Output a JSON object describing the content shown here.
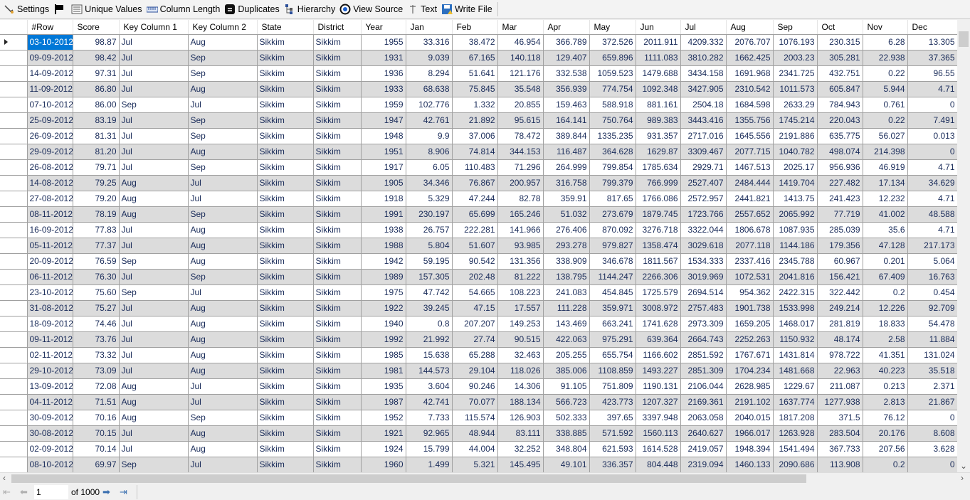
{
  "toolbar": [
    {
      "label": "Settings",
      "icon": "settings-icon"
    },
    {
      "label": "",
      "icon": "flag-icon"
    },
    {
      "label": "Unique Values",
      "icon": "unique-values-icon"
    },
    {
      "label": "Column Length",
      "icon": "ruler-icon"
    },
    {
      "label": "Duplicates",
      "icon": "duplicates-icon"
    },
    {
      "label": "Hierarchy",
      "icon": "hierarchy-icon"
    },
    {
      "label": "View Source",
      "icon": "view-source-icon"
    },
    {
      "label": "Text",
      "icon": "text-icon"
    },
    {
      "label": "Write File",
      "icon": "save-icon"
    }
  ],
  "columns": [
    "#Row",
    "Score",
    "Key Column 1",
    "Key Column 2",
    "State",
    "District",
    "Year",
    "Jan",
    "Feb",
    "Mar",
    "Apr",
    "May",
    "Jun",
    "Jul",
    "Aug",
    "Sep",
    "Oct",
    "Nov",
    "Dec"
  ],
  "rows": [
    [
      "03-10-2012",
      "98.87",
      "Jul",
      "Aug",
      "Sikkim",
      "Sikkim",
      "1955",
      "33.316",
      "38.472",
      "46.954",
      "366.789",
      "372.526",
      "2011.911",
      "4209.332",
      "2076.707",
      "1076.193",
      "230.315",
      "6.28",
      "13.305"
    ],
    [
      "09-09-2012",
      "98.42",
      "Jul",
      "Sep",
      "Sikkim",
      "Sikkim",
      "1931",
      "9.039",
      "67.165",
      "140.118",
      "129.407",
      "659.896",
      "1111.083",
      "3810.282",
      "1662.425",
      "2003.23",
      "305.281",
      "22.938",
      "37.365"
    ],
    [
      "14-09-2012",
      "97.31",
      "Jul",
      "Sep",
      "Sikkim",
      "Sikkim",
      "1936",
      "8.294",
      "51.641",
      "121.176",
      "332.538",
      "1059.523",
      "1479.688",
      "3434.158",
      "1691.968",
      "2341.725",
      "432.751",
      "0.22",
      "96.55"
    ],
    [
      "11-09-2012",
      "86.80",
      "Jul",
      "Aug",
      "Sikkim",
      "Sikkim",
      "1933",
      "68.638",
      "75.845",
      "35.548",
      "356.939",
      "774.754",
      "1092.348",
      "3427.905",
      "2310.542",
      "1011.573",
      "605.847",
      "5.944",
      "4.71"
    ],
    [
      "07-10-2012",
      "86.00",
      "Sep",
      "Jul",
      "Sikkim",
      "Sikkim",
      "1959",
      "102.776",
      "1.332",
      "20.855",
      "159.463",
      "588.918",
      "881.161",
      "2504.18",
      "1684.598",
      "2633.29",
      "784.943",
      "0.761",
      "0"
    ],
    [
      "25-09-2012",
      "83.19",
      "Jul",
      "Sep",
      "Sikkim",
      "Sikkim",
      "1947",
      "42.761",
      "21.892",
      "95.615",
      "164.141",
      "750.764",
      "989.383",
      "3443.416",
      "1355.756",
      "1745.214",
      "220.043",
      "0.22",
      "7.491"
    ],
    [
      "26-09-2012",
      "81.31",
      "Jul",
      "Sep",
      "Sikkim",
      "Sikkim",
      "1948",
      "9.9",
      "37.006",
      "78.472",
      "389.844",
      "1335.235",
      "931.357",
      "2717.016",
      "1645.556",
      "2191.886",
      "635.775",
      "56.027",
      "0.013"
    ],
    [
      "29-09-2012",
      "81.20",
      "Jul",
      "Aug",
      "Sikkim",
      "Sikkim",
      "1951",
      "8.906",
      "74.814",
      "344.153",
      "116.487",
      "364.628",
      "1629.87",
      "3309.467",
      "2077.715",
      "1040.782",
      "498.074",
      "214.398",
      "0"
    ],
    [
      "26-08-2012",
      "79.71",
      "Jul",
      "Sep",
      "Sikkim",
      "Sikkim",
      "1917",
      "6.05",
      "110.483",
      "71.296",
      "264.999",
      "799.854",
      "1785.634",
      "2929.71",
      "1467.513",
      "2025.17",
      "956.936",
      "46.919",
      "4.71"
    ],
    [
      "14-08-2012",
      "79.25",
      "Aug",
      "Jul",
      "Sikkim",
      "Sikkim",
      "1905",
      "34.346",
      "76.867",
      "200.957",
      "316.758",
      "799.379",
      "766.999",
      "2527.407",
      "2484.444",
      "1419.704",
      "227.482",
      "17.134",
      "34.629"
    ],
    [
      "27-08-2012",
      "79.20",
      "Aug",
      "Jul",
      "Sikkim",
      "Sikkim",
      "1918",
      "5.329",
      "47.244",
      "82.78",
      "359.91",
      "817.65",
      "1766.086",
      "2572.957",
      "2441.821",
      "1413.75",
      "241.423",
      "12.232",
      "4.71"
    ],
    [
      "08-11-2012",
      "78.19",
      "Aug",
      "Sep",
      "Sikkim",
      "Sikkim",
      "1991",
      "230.197",
      "65.699",
      "165.246",
      "51.032",
      "273.679",
      "1879.745",
      "1723.766",
      "2557.652",
      "2065.992",
      "77.719",
      "41.002",
      "48.588"
    ],
    [
      "16-09-2012",
      "77.83",
      "Jul",
      "Aug",
      "Sikkim",
      "Sikkim",
      "1938",
      "26.757",
      "222.281",
      "141.966",
      "276.406",
      "870.092",
      "3276.718",
      "3322.044",
      "1806.678",
      "1087.935",
      "285.039",
      "35.6",
      "4.71"
    ],
    [
      "05-11-2012",
      "77.37",
      "Jul",
      "Aug",
      "Sikkim",
      "Sikkim",
      "1988",
      "5.804",
      "51.607",
      "93.985",
      "293.278",
      "979.827",
      "1358.474",
      "3029.618",
      "2077.118",
      "1144.186",
      "179.356",
      "47.128",
      "217.173"
    ],
    [
      "20-09-2012",
      "76.59",
      "Sep",
      "Aug",
      "Sikkim",
      "Sikkim",
      "1942",
      "59.195",
      "90.542",
      "131.356",
      "338.909",
      "346.678",
      "1811.567",
      "1534.333",
      "2337.416",
      "2345.788",
      "60.967",
      "0.201",
      "5.064"
    ],
    [
      "06-11-2012",
      "76.30",
      "Jul",
      "Sep",
      "Sikkim",
      "Sikkim",
      "1989",
      "157.305",
      "202.48",
      "81.222",
      "138.795",
      "1144.247",
      "2266.306",
      "3019.969",
      "1072.531",
      "2041.816",
      "156.421",
      "67.409",
      "16.763"
    ],
    [
      "23-10-2012",
      "75.60",
      "Sep",
      "Jul",
      "Sikkim",
      "Sikkim",
      "1975",
      "47.742",
      "54.665",
      "108.223",
      "241.083",
      "454.845",
      "1725.579",
      "2694.514",
      "954.362",
      "2422.315",
      "322.442",
      "0.2",
      "0.454"
    ],
    [
      "31-08-2012",
      "75.27",
      "Jul",
      "Aug",
      "Sikkim",
      "Sikkim",
      "1922",
      "39.245",
      "47.15",
      "17.557",
      "111.228",
      "359.971",
      "3008.972",
      "2757.483",
      "1901.738",
      "1533.998",
      "249.214",
      "12.226",
      "92.709"
    ],
    [
      "18-09-2012",
      "74.46",
      "Jul",
      "Aug",
      "Sikkim",
      "Sikkim",
      "1940",
      "0.8",
      "207.207",
      "149.253",
      "143.469",
      "663.241",
      "1741.628",
      "2973.309",
      "1659.205",
      "1468.017",
      "281.819",
      "18.833",
      "54.478"
    ],
    [
      "09-11-2012",
      "73.76",
      "Jul",
      "Aug",
      "Sikkim",
      "Sikkim",
      "1992",
      "21.992",
      "27.74",
      "90.515",
      "422.063",
      "975.291",
      "639.364",
      "2664.743",
      "2252.263",
      "1150.932",
      "48.174",
      "2.58",
      "11.884"
    ],
    [
      "02-11-2012",
      "73.32",
      "Jul",
      "Aug",
      "Sikkim",
      "Sikkim",
      "1985",
      "15.638",
      "65.288",
      "32.463",
      "205.255",
      "655.754",
      "1166.602",
      "2851.592",
      "1767.671",
      "1431.814",
      "978.722",
      "41.351",
      "131.024"
    ],
    [
      "29-10-2012",
      "73.09",
      "Jul",
      "Aug",
      "Sikkim",
      "Sikkim",
      "1981",
      "144.573",
      "29.104",
      "118.026",
      "385.006",
      "1108.859",
      "1493.227",
      "2851.309",
      "1704.234",
      "1481.668",
      "22.963",
      "40.223",
      "35.518"
    ],
    [
      "13-09-2012",
      "72.08",
      "Aug",
      "Jul",
      "Sikkim",
      "Sikkim",
      "1935",
      "3.604",
      "90.246",
      "14.306",
      "91.105",
      "751.809",
      "1190.131",
      "2106.044",
      "2628.985",
      "1229.67",
      "211.087",
      "0.213",
      "2.371"
    ],
    [
      "04-11-2012",
      "71.51",
      "Aug",
      "Jul",
      "Sikkim",
      "Sikkim",
      "1987",
      "42.741",
      "70.077",
      "188.134",
      "566.723",
      "423.773",
      "1207.327",
      "2169.361",
      "2191.102",
      "1637.774",
      "1277.938",
      "2.813",
      "21.867"
    ],
    [
      "30-09-2012",
      "70.16",
      "Aug",
      "Sep",
      "Sikkim",
      "Sikkim",
      "1952",
      "7.733",
      "115.574",
      "126.903",
      "502.333",
      "397.65",
      "3397.948",
      "2063.058",
      "2040.015",
      "1817.208",
      "371.5",
      "76.12",
      "0"
    ],
    [
      "30-08-2012",
      "70.15",
      "Jul",
      "Aug",
      "Sikkim",
      "Sikkim",
      "1921",
      "92.965",
      "48.944",
      "83.111",
      "338.885",
      "571.592",
      "1560.113",
      "2640.627",
      "1966.017",
      "1263.928",
      "283.504",
      "20.176",
      "8.608"
    ],
    [
      "02-09-2012",
      "70.14",
      "Jul",
      "Aug",
      "Sikkim",
      "Sikkim",
      "1924",
      "15.799",
      "44.004",
      "32.252",
      "348.804",
      "621.593",
      "1614.528",
      "2419.057",
      "1948.394",
      "1541.494",
      "367.733",
      "207.56",
      "3.628"
    ],
    [
      "08-10-2012",
      "69.97",
      "Sep",
      "Jul",
      "Sikkim",
      "Sikkim",
      "1960",
      "1.499",
      "5.321",
      "145.495",
      "49.101",
      "336.357",
      "804.448",
      "2319.094",
      "1460.133",
      "2090.686",
      "113.908",
      "0.2",
      "0"
    ]
  ],
  "pager": {
    "current_page": "1",
    "of_label": "of 1000"
  },
  "colors": {
    "selection": "#0078d7",
    "alt_row": "#dcdcdc",
    "cell_text": "#1a2c5a"
  }
}
